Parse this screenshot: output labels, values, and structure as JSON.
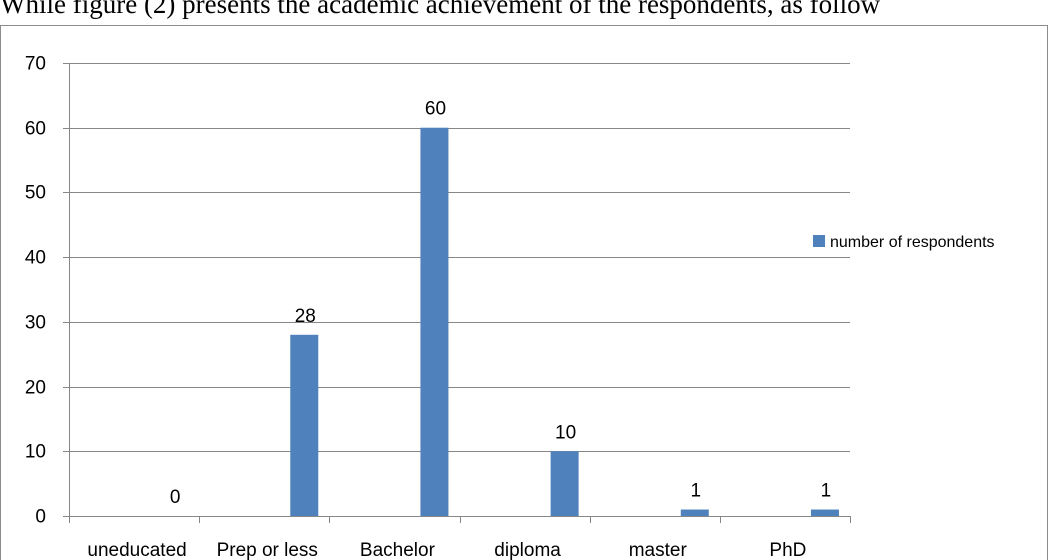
{
  "document": {
    "visible_line": "While figure (2) presents the academic achievement of the respondents, as follow"
  },
  "colors": {
    "bar": "#4f81bd",
    "gridline": "#878787",
    "axis": "#878787",
    "frame": "#8c8c8c"
  },
  "chart_data": {
    "type": "bar",
    "title": "",
    "xlabel": "",
    "ylabel": "",
    "categories": [
      "uneducated",
      "Prep or less",
      "Bachelor",
      "diploma",
      "master",
      "PhD"
    ],
    "series": [
      {
        "name": "number of respondents",
        "values": [
          0,
          28,
          60,
          10,
          1,
          1
        ]
      }
    ],
    "data_labels": [
      "0",
      "28",
      "60",
      "10",
      "1",
      "1"
    ],
    "ylim": [
      0,
      70
    ],
    "yticks": [
      0,
      10,
      20,
      30,
      40,
      50,
      60,
      70
    ],
    "grid": true,
    "legend_position": "right"
  }
}
